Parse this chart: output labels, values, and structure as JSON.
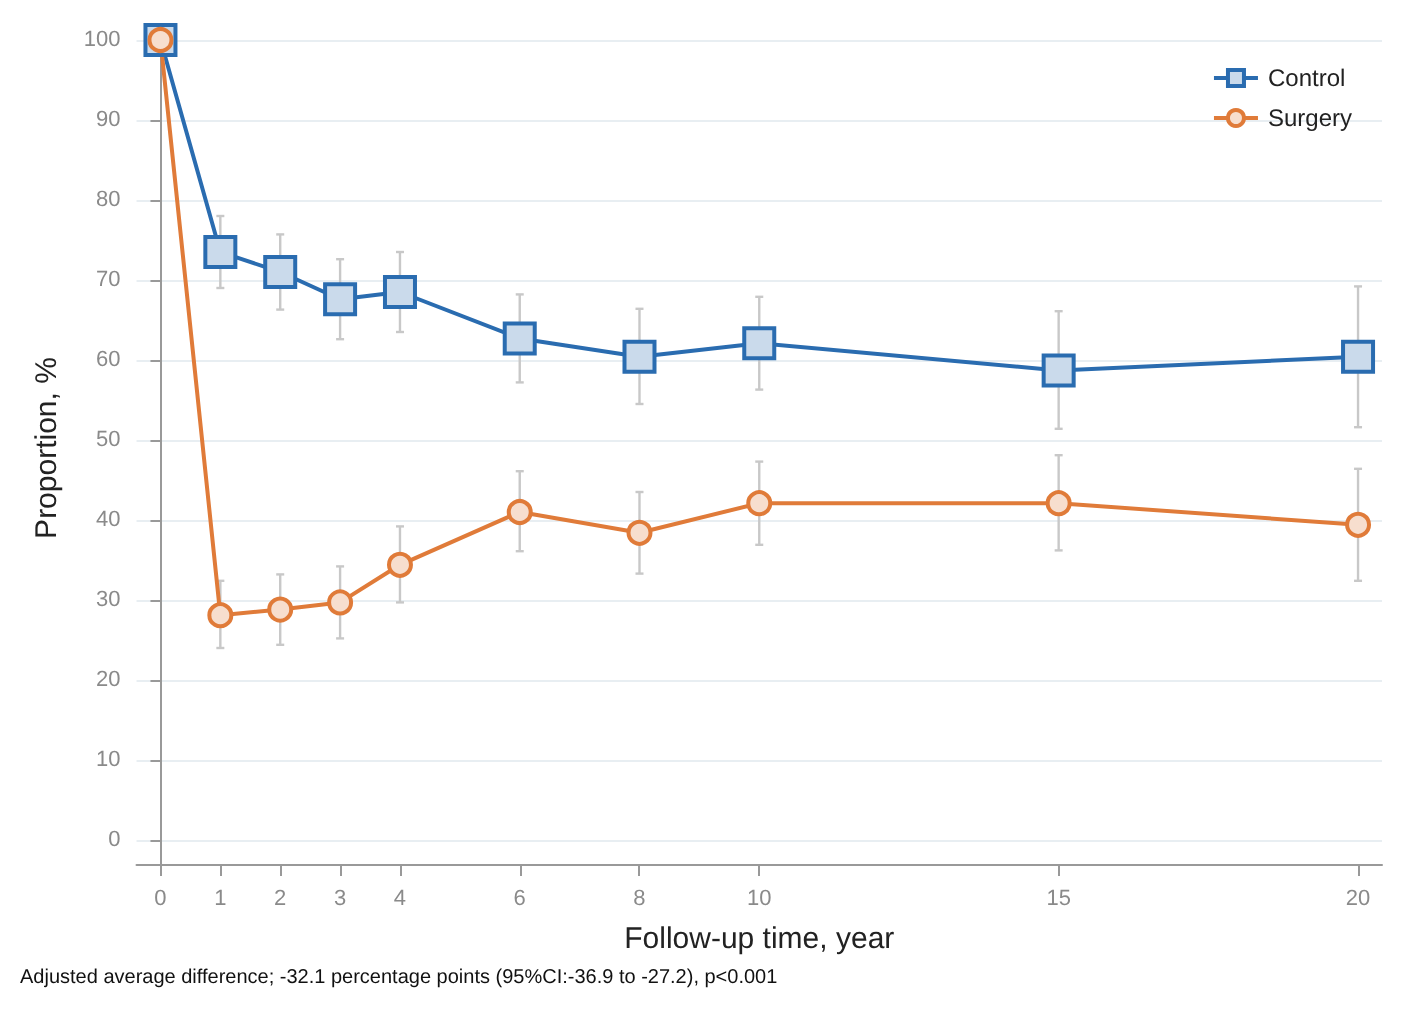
{
  "chart_data": {
    "type": "line",
    "xlabel": "Follow-up time, year",
    "ylabel": "Proportion, %",
    "annotations": [
      "Adjusted average difference; -32.1 percentage points (95%CI:-36.9 to -27.2), p<0.001"
    ],
    "x": [
      0,
      1,
      2,
      3,
      4,
      6,
      8,
      10,
      15,
      20
    ],
    "series": [
      {
        "name": "Control",
        "color": "#2a6cb0",
        "marker": "square",
        "values": [
          100,
          73.5,
          71,
          67.6,
          68.5,
          62.7,
          60.4,
          62.1,
          58.7,
          60.4
        ],
        "errors": [
          null,
          [
            69,
            78
          ],
          [
            66.3,
            75.7
          ],
          [
            62.6,
            72.6
          ],
          [
            63.5,
            73.5
          ],
          [
            57.2,
            68.2
          ],
          [
            54.5,
            66.4
          ],
          [
            56.3,
            67.9
          ],
          [
            51.4,
            66.1
          ],
          [
            51.6,
            69.2
          ]
        ]
      },
      {
        "name": "Surgery",
        "color": "#e07b39",
        "marker": "circle",
        "values": [
          100,
          28.1,
          28.8,
          29.7,
          34.4,
          41,
          38.4,
          42.1,
          42.1,
          39.4
        ],
        "errors": [
          null,
          [
            24,
            32.4
          ],
          [
            24.4,
            33.2
          ],
          [
            25.2,
            34.2
          ],
          [
            29.7,
            39.2
          ],
          [
            36.1,
            46.1
          ],
          [
            33.3,
            43.5
          ],
          [
            36.9,
            47.3
          ],
          [
            36.2,
            48.1
          ],
          [
            32.4,
            46.4
          ]
        ]
      }
    ],
    "xlim": [
      -0.4,
      20.4
    ],
    "xticks": [
      0,
      1,
      2,
      3,
      4,
      6,
      8,
      10,
      15,
      20
    ],
    "ylim": [
      -3,
      101
    ],
    "yticks": [
      0,
      10,
      20,
      30,
      40,
      50,
      60,
      70,
      80,
      90,
      100
    ],
    "grid": "y",
    "legend": "top right",
    "line_style": "solid"
  }
}
